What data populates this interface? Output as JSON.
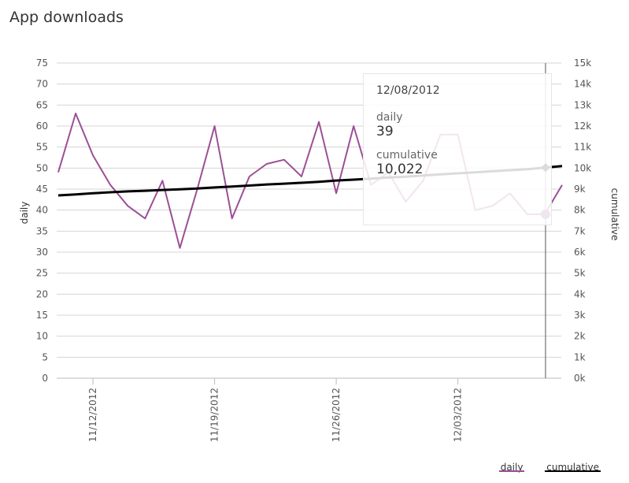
{
  "chart_data": {
    "type": "line",
    "title": "App downloads",
    "x": [
      "11/10/2012",
      "11/11/2012",
      "11/12/2012",
      "11/13/2012",
      "11/14/2012",
      "11/15/2012",
      "11/16/2012",
      "11/17/2012",
      "11/18/2012",
      "11/19/2012",
      "11/20/2012",
      "11/21/2012",
      "11/22/2012",
      "11/23/2012",
      "11/24/2012",
      "11/25/2012",
      "11/26/2012",
      "11/27/2012",
      "11/28/2012",
      "11/29/2012",
      "11/30/2012",
      "12/01/2012",
      "12/02/2012",
      "12/03/2012",
      "12/04/2012",
      "12/05/2012",
      "12/06/2012",
      "12/07/2012",
      "12/08/2012",
      "12/09/2012"
    ],
    "x_ticks": [
      "11/12/2012",
      "11/19/2012",
      "11/26/2012",
      "12/03/2012"
    ],
    "series": [
      {
        "name": "daily",
        "axis": "left",
        "color": "#9b4f96",
        "values": [
          49,
          63,
          53,
          46,
          41,
          38,
          47,
          31,
          45,
          60,
          38,
          48,
          51,
          52,
          48,
          61,
          44,
          60,
          46,
          49,
          42,
          47,
          58,
          58,
          40,
          41,
          44,
          39,
          39,
          46
        ]
      },
      {
        "name": "cumulative",
        "axis": "right",
        "color": "#000000",
        "values": [
          8700,
          8750,
          8800,
          8850,
          8890,
          8920,
          8960,
          8990,
          9030,
          9080,
          9120,
          9170,
          9220,
          9260,
          9300,
          9350,
          9410,
          9450,
          9500,
          9550,
          9590,
          9650,
          9700,
          9750,
          9800,
          9850,
          9900,
          9950,
          10022,
          10100
        ]
      }
    ],
    "ylabel": "daily",
    "ylim": [
      0,
      75
    ],
    "yticks": [
      0,
      5,
      10,
      15,
      20,
      25,
      30,
      35,
      40,
      45,
      50,
      55,
      60,
      65,
      70,
      75
    ],
    "y2label": "cumulative",
    "y2lim": [
      0,
      15000
    ],
    "y2ticks": [
      "0k",
      "1k",
      "2k",
      "3k",
      "4k",
      "5k",
      "6k",
      "7k",
      "8k",
      "9k",
      "10k",
      "11k",
      "12k",
      "13k",
      "14k",
      "15k"
    ],
    "grid": true,
    "highlight_index": 28,
    "legend_position": "bottom-right"
  },
  "tooltip": {
    "date": "12/08/2012",
    "daily_label": "daily",
    "daily_value": "39",
    "cumulative_label": "cumulative",
    "cumulative_value": "10,022"
  },
  "legend": {
    "daily": "daily",
    "cumulative": "cumulative"
  }
}
